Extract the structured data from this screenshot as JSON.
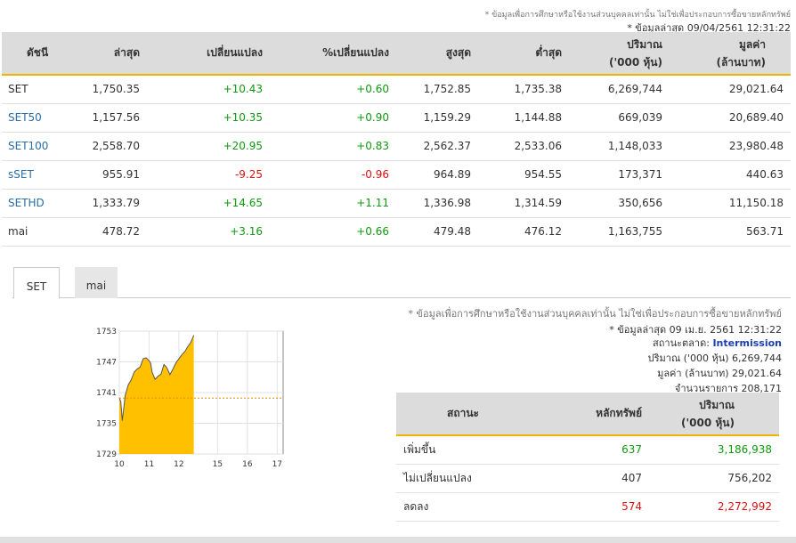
{
  "header": {
    "disclaimer": "* ข้อมูลเพื่อการศึกษาหรือใช้งานส่วนบุคคลเท่านั้น ไม่ใช่เพื่อประกอบการซื้อขายหลักทรัพย์",
    "last_updated": "* ข้อมูลล่าสุด 09/04/2561 12:31:22"
  },
  "index_table": {
    "columns": [
      "ดัชนี",
      "ล่าสุด",
      "เปลี่ยนแปลง",
      "%เปลี่ยนแปลง",
      "สูงสุด",
      "ต่ำสุด",
      "ปริมาณ",
      "('000 หุ้น)",
      "มูลค่า",
      "(ล้านบาท)"
    ],
    "rows": [
      {
        "name": "SET",
        "last": "1,750.35",
        "change": "+10.43",
        "pct": "+0.60",
        "high": "1,752.85",
        "low": "1,735.38",
        "volume": "6,269,744",
        "value": "29,021.64",
        "dir": "up",
        "link": false
      },
      {
        "name": "SET50",
        "last": "1,157.56",
        "change": "+10.35",
        "pct": "+0.90",
        "high": "1,159.29",
        "low": "1,144.88",
        "volume": "669,039",
        "value": "20,689.40",
        "dir": "up",
        "link": true
      },
      {
        "name": "SET100",
        "last": "2,558.70",
        "change": "+20.95",
        "pct": "+0.83",
        "high": "2,562.37",
        "low": "2,533.06",
        "volume": "1,148,033",
        "value": "23,980.48",
        "dir": "up",
        "link": true
      },
      {
        "name": "sSET",
        "last": "955.91",
        "change": "-9.25",
        "pct": "-0.96",
        "high": "964.89",
        "low": "954.55",
        "volume": "173,371",
        "value": "440.63",
        "dir": "down",
        "link": true
      },
      {
        "name": "SETHD",
        "last": "1,333.79",
        "change": "+14.65",
        "pct": "+1.11",
        "high": "1,336.98",
        "low": "1,314.59",
        "volume": "350,656",
        "value": "11,150.18",
        "dir": "up",
        "link": true
      },
      {
        "name": "mai",
        "last": "478.72",
        "change": "+3.16",
        "pct": "+0.66",
        "high": "479.48",
        "low": "476.12",
        "volume": "1,163,755",
        "value": "563.71",
        "dir": "up",
        "link": false
      }
    ]
  },
  "tabs": [
    {
      "label": "SET",
      "active": true
    },
    {
      "label": "mai",
      "active": false
    }
  ],
  "detail": {
    "disclaimer": "* ข้อมูลเพื่อการศึกษาหรือใช้งานส่วนบุคคลเท่านั้น ไม่ใช่เพื่อประกอบการซื้อขายหลักทรัพย์",
    "last_updated": "* ข้อมูลล่าสุด 09 เม.ย. 2561 12:31:22",
    "market_status_label": "สถานะตลาด:",
    "market_status": "Intermission",
    "volume_line": "ปริมาณ ('000 หุ้น)  6,269,744",
    "value_line": "มูลค่า (ล้านบาท)  29,021.64",
    "trades_line": "จำนวนรายการ  208,171"
  },
  "stat_table": {
    "col_status": "สถานะ",
    "col_securities": "หลักทรัพย์",
    "col_volume": "ปริมาณ",
    "col_volume_unit": "('000 หุ้น)",
    "rows": [
      {
        "label": "เพิ่มขึ้น",
        "count": "637",
        "volume": "3,186,938",
        "dir": "up"
      },
      {
        "label": "ไม่เปลี่ยนแปลง",
        "count": "407",
        "volume": "756,202",
        "dir": "none"
      },
      {
        "label": "ลดลง",
        "count": "574",
        "volume": "2,272,992",
        "dir": "down"
      }
    ]
  },
  "colors": {
    "up": "#119911",
    "down": "#dd1111",
    "link": "#2a6ea6",
    "accent": "#f0b400",
    "area": "#ffc000",
    "prev_close": "#f08a00"
  },
  "chart_data": {
    "type": "area",
    "x_ticks": [
      "10",
      "11",
      "12",
      "15",
      "16",
      "17"
    ],
    "y_ticks": [
      "1753",
      "1747",
      "1741",
      "1735",
      "1729"
    ],
    "ylim": [
      1729,
      1753
    ],
    "previous_close": 1739.92,
    "x": [
      10.0,
      10.05,
      10.1,
      10.2,
      10.3,
      10.4,
      10.5,
      10.6,
      10.7,
      10.8,
      10.9,
      11.0,
      11.05,
      11.1,
      11.2,
      11.3,
      11.4,
      11.5,
      11.6,
      11.7,
      11.8,
      11.9,
      12.0,
      12.1,
      12.2,
      12.3,
      12.4,
      12.5
    ],
    "values": [
      1740.0,
      1739.2,
      1735.5,
      1740.5,
      1742.5,
      1743.5,
      1745.0,
      1745.6,
      1746.0,
      1747.6,
      1747.8,
      1747.2,
      1746.8,
      1745.0,
      1743.6,
      1744.2,
      1744.6,
      1746.5,
      1745.8,
      1744.5,
      1745.6,
      1746.8,
      1747.6,
      1748.4,
      1749.0,
      1750.0,
      1750.8,
      1752.2
    ]
  }
}
